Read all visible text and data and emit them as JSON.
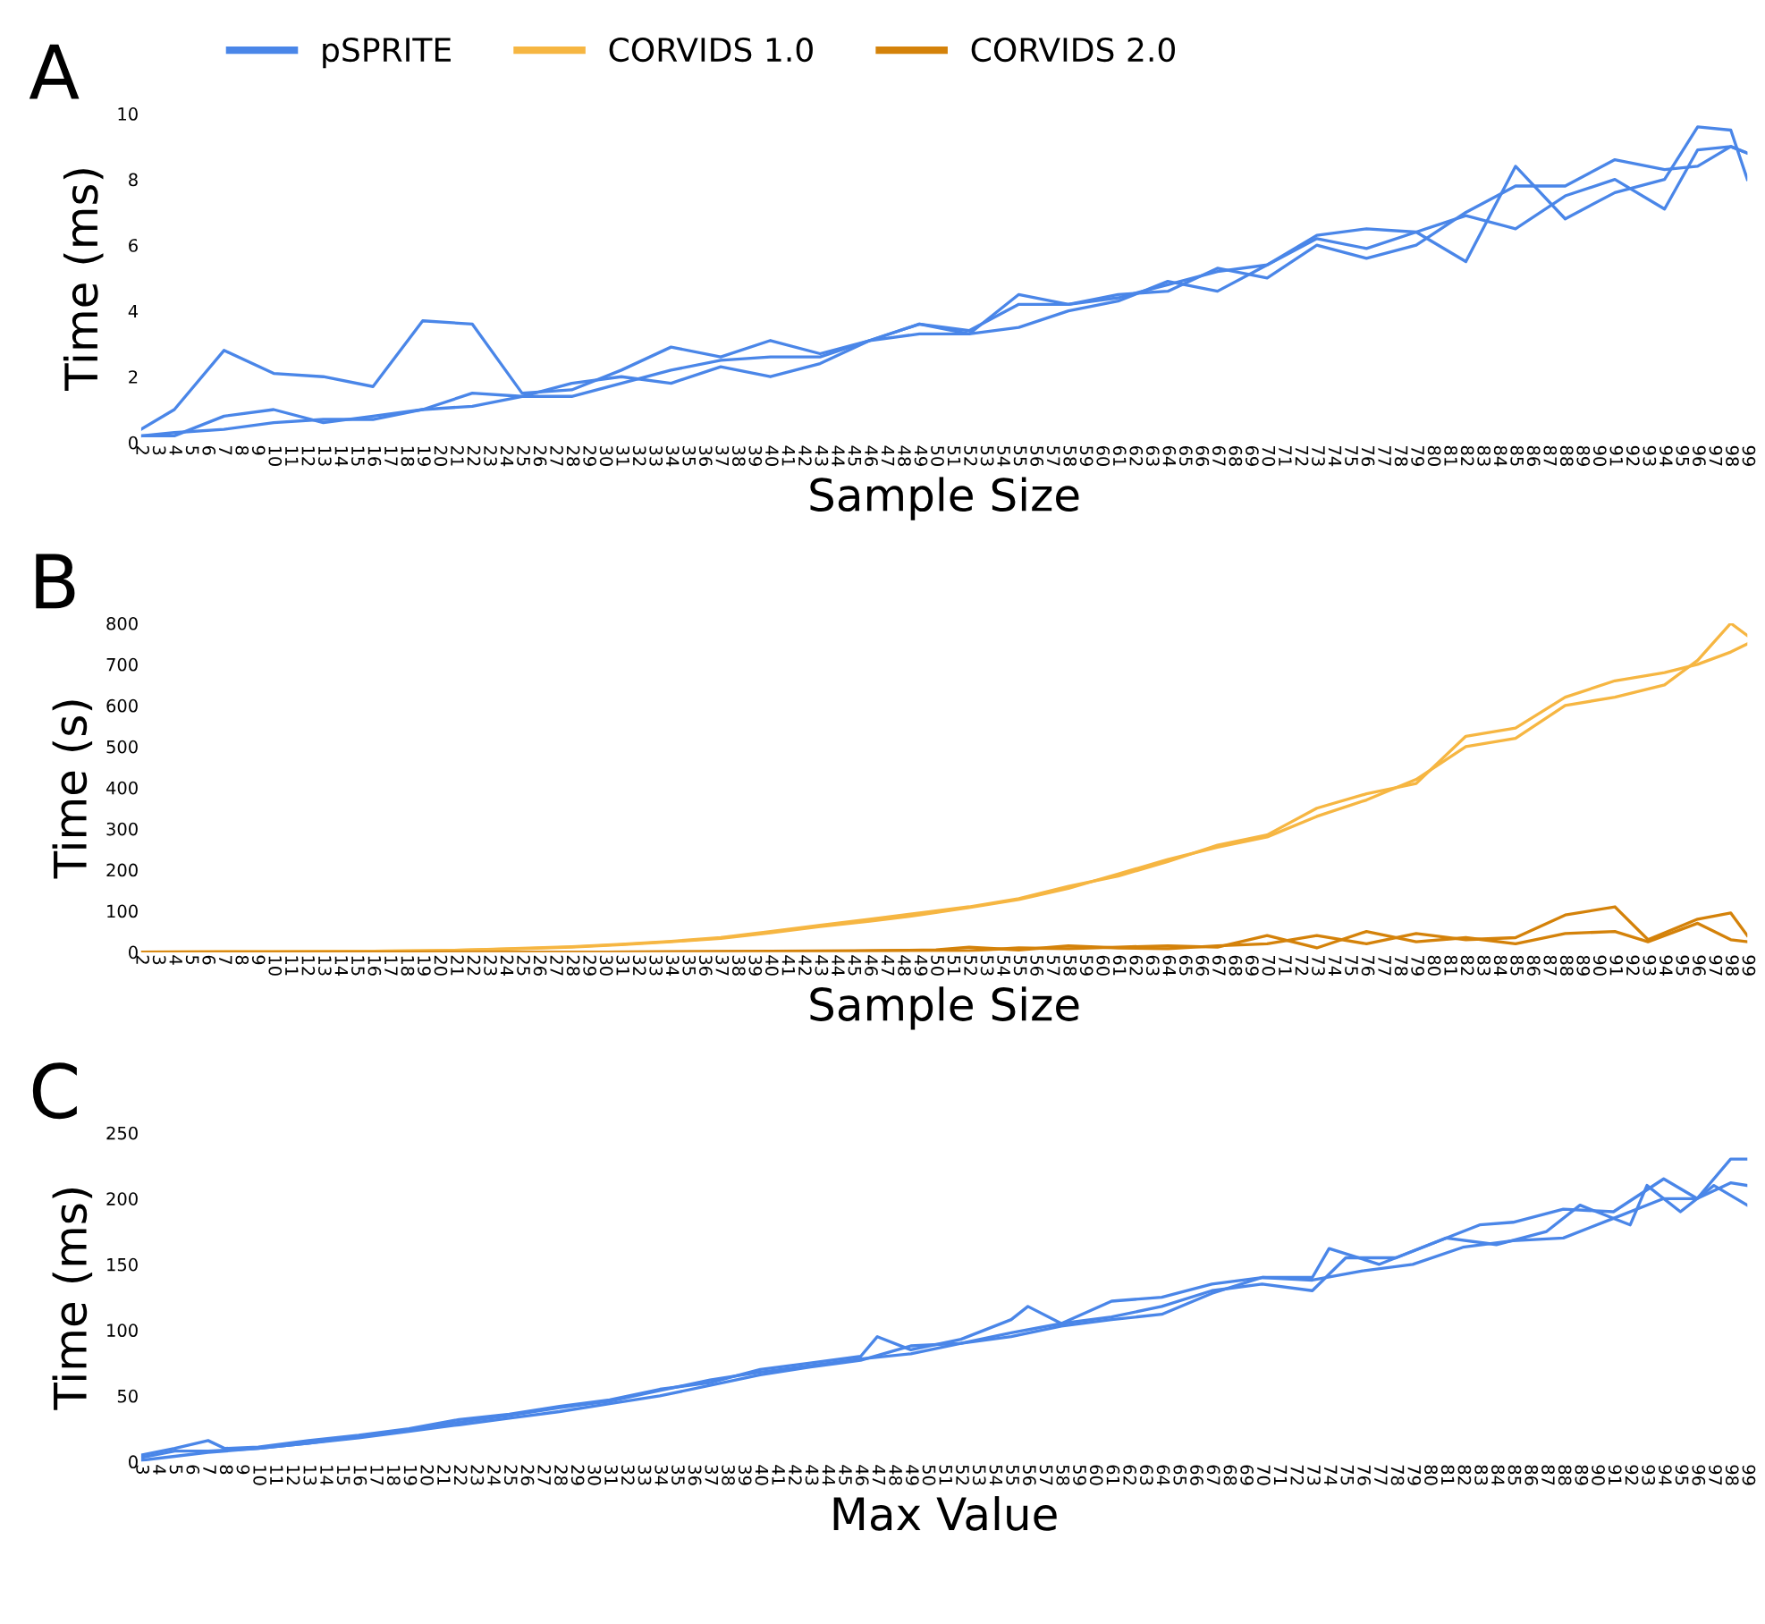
{
  "chart_data": [
    {
      "type": "line",
      "title": "A",
      "xlabel": "Sample Size",
      "ylabel": "Time (ms)",
      "legend": "top",
      "grid": false,
      "marker": "none",
      "line_style": "solid",
      "xlim": [
        2,
        99
      ],
      "ylim": [
        0,
        10
      ],
      "yticks": [
        0,
        2,
        4,
        6,
        8,
        10
      ],
      "xticks": [
        2,
        3,
        4,
        5,
        6,
        7,
        8,
        9,
        10,
        11,
        12,
        13,
        14,
        15,
        16,
        17,
        18,
        19,
        20,
        21,
        22,
        23,
        24,
        25,
        26,
        27,
        28,
        29,
        30,
        31,
        32,
        33,
        34,
        35,
        36,
        37,
        38,
        39,
        40,
        41,
        42,
        43,
        44,
        45,
        46,
        47,
        48,
        49,
        50,
        51,
        52,
        53,
        54,
        55,
        56,
        57,
        58,
        59,
        60,
        61,
        62,
        63,
        64,
        65,
        66,
        67,
        68,
        69,
        70,
        71,
        72,
        73,
        74,
        75,
        76,
        77,
        78,
        79,
        80,
        81,
        82,
        83,
        84,
        85,
        86,
        87,
        88,
        89,
        90,
        91,
        92,
        93,
        94,
        95,
        96,
        97,
        98,
        99
      ],
      "series": [
        {
          "name": "pSPRITE",
          "color": "#4a86e8",
          "x": [
            2,
            4,
            7,
            10,
            13,
            16,
            19,
            22,
            25,
            28,
            31,
            34,
            37,
            40,
            43,
            46,
            49,
            52,
            55,
            58,
            61,
            64,
            67,
            70,
            73,
            76,
            79,
            82,
            85,
            88,
            91,
            94,
            96,
            98,
            99
          ],
          "values": [
            0.4,
            1.0,
            2.8,
            2.1,
            2.0,
            1.7,
            3.7,
            3.6,
            1.5,
            1.6,
            2.2,
            2.9,
            2.6,
            3.1,
            2.7,
            3.1,
            3.6,
            3.3,
            4.5,
            4.2,
            4.4,
            4.8,
            5.2,
            5.4,
            6.3,
            6.5,
            6.4,
            5.5,
            8.4,
            6.8,
            7.6,
            8.0,
            9.6,
            9.5,
            8.0
          ]
        },
        {
          "color": "#4a86e8",
          "x": [
            2,
            4,
            7,
            10,
            13,
            16,
            19,
            22,
            25,
            28,
            31,
            34,
            37,
            40,
            43,
            46,
            49,
            52,
            55,
            58,
            61,
            64,
            67,
            70,
            73,
            76,
            79,
            82,
            85,
            88,
            91,
            94,
            96,
            98,
            99
          ],
          "values": [
            0.2,
            0.2,
            0.8,
            1.0,
            0.6,
            0.8,
            1.0,
            1.1,
            1.4,
            1.8,
            2.0,
            1.8,
            2.3,
            2.0,
            2.4,
            3.1,
            3.3,
            3.3,
            3.5,
            4.0,
            4.3,
            4.9,
            4.6,
            5.4,
            6.2,
            5.9,
            6.4,
            6.9,
            6.5,
            7.5,
            8.0,
            7.1,
            8.9,
            9.0,
            8.8
          ]
        },
        {
          "color": "#4a86e8",
          "x": [
            2,
            4,
            7,
            10,
            13,
            16,
            19,
            22,
            25,
            28,
            31,
            34,
            37,
            40,
            43,
            46,
            49,
            52,
            55,
            58,
            61,
            64,
            67,
            70,
            73,
            76,
            79,
            82,
            85,
            88,
            91,
            94,
            96,
            98,
            99
          ],
          "values": [
            0.2,
            0.3,
            0.4,
            0.6,
            0.7,
            0.7,
            1.0,
            1.5,
            1.4,
            1.4,
            1.8,
            2.2,
            2.5,
            2.6,
            2.6,
            3.1,
            3.6,
            3.4,
            4.2,
            4.2,
            4.5,
            4.6,
            5.3,
            5.0,
            6.0,
            5.6,
            6.0,
            7.0,
            7.8,
            7.8,
            8.6,
            8.3,
            8.4,
            9.0,
            8.8
          ]
        }
      ]
    },
    {
      "type": "line",
      "title": "B",
      "xlabel": "Sample Size",
      "ylabel": "Time (s)",
      "legend": "top",
      "grid": false,
      "marker": "none",
      "line_style": "solid",
      "xlim": [
        2,
        99
      ],
      "ylim": [
        0,
        800
      ],
      "yticks": [
        0,
        100,
        200,
        300,
        400,
        500,
        600,
        700,
        800
      ],
      "xticks": [
        2,
        3,
        4,
        5,
        6,
        7,
        8,
        9,
        10,
        11,
        12,
        13,
        14,
        15,
        16,
        17,
        18,
        19,
        20,
        21,
        22,
        23,
        24,
        25,
        26,
        27,
        28,
        29,
        30,
        31,
        32,
        33,
        34,
        35,
        36,
        37,
        38,
        39,
        40,
        41,
        42,
        43,
        44,
        45,
        46,
        47,
        48,
        49,
        50,
        51,
        52,
        53,
        54,
        55,
        56,
        57,
        58,
        59,
        60,
        61,
        62,
        63,
        64,
        65,
        66,
        67,
        68,
        69,
        70,
        71,
        72,
        73,
        74,
        75,
        76,
        77,
        78,
        79,
        80,
        81,
        82,
        83,
        84,
        85,
        86,
        87,
        88,
        89,
        90,
        91,
        92,
        93,
        94,
        95,
        96,
        97,
        98,
        99
      ],
      "series": [
        {
          "name": "CORVIDS 1.0",
          "color": "#f6b642",
          "x": [
            2,
            10,
            16,
            19,
            22,
            25,
            28,
            31,
            34,
            37,
            40,
            43,
            46,
            49,
            52,
            55,
            58,
            61,
            64,
            67,
            70,
            73,
            76,
            79,
            82,
            85,
            88,
            91,
            94,
            96,
            98,
            99
          ],
          "values": [
            0,
            1,
            2,
            3,
            5,
            8,
            12,
            18,
            25,
            33,
            47,
            62,
            75,
            90,
            108,
            128,
            155,
            190,
            225,
            255,
            280,
            330,
            370,
            420,
            500,
            520,
            600,
            620,
            650,
            710,
            800,
            770
          ]
        },
        {
          "color": "#f6b642",
          "x": [
            2,
            10,
            16,
            19,
            22,
            25,
            28,
            31,
            34,
            37,
            40,
            43,
            46,
            49,
            52,
            55,
            58,
            61,
            64,
            67,
            70,
            73,
            76,
            79,
            82,
            85,
            88,
            91,
            94,
            96,
            98,
            99
          ],
          "values": [
            0,
            1,
            2,
            3,
            5,
            9,
            13,
            19,
            26,
            35,
            50,
            65,
            80,
            95,
            110,
            130,
            160,
            185,
            220,
            260,
            285,
            350,
            385,
            410,
            525,
            545,
            620,
            660,
            680,
            700,
            730,
            750
          ]
        },
        {
          "name": "CORVIDS 2.0",
          "color": "#d4820a",
          "x": [
            2,
            10,
            20,
            30,
            40,
            45,
            50,
            52,
            55,
            58,
            61,
            64,
            67,
            70,
            73,
            76,
            79,
            82,
            85,
            88,
            91,
            93,
            96,
            98,
            99
          ],
          "values": [
            0,
            0,
            0,
            0,
            2,
            3,
            5,
            12,
            5,
            15,
            10,
            8,
            15,
            20,
            40,
            20,
            45,
            30,
            35,
            90,
            110,
            30,
            80,
            95,
            40
          ]
        },
        {
          "color": "#d4820a",
          "x": [
            2,
            10,
            20,
            30,
            40,
            45,
            50,
            52,
            55,
            58,
            61,
            64,
            67,
            70,
            73,
            76,
            79,
            82,
            85,
            88,
            91,
            93,
            96,
            98,
            99
          ],
          "values": [
            0,
            0,
            0,
            0,
            1,
            2,
            4,
            3,
            10,
            8,
            12,
            15,
            12,
            40,
            10,
            50,
            25,
            35,
            20,
            45,
            50,
            25,
            70,
            30,
            25
          ]
        }
      ]
    },
    {
      "type": "line",
      "title": "C",
      "xlabel": "Max Value",
      "ylabel": "Time (ms)",
      "grid": false,
      "marker": "none",
      "line_style": "solid",
      "xlim": [
        3,
        99
      ],
      "ylim": [
        0,
        250
      ],
      "yticks": [
        0,
        50,
        100,
        150,
        200,
        250
      ],
      "xticks": [
        3,
        4,
        5,
        6,
        7,
        8,
        9,
        10,
        11,
        12,
        13,
        14,
        15,
        16,
        17,
        18,
        19,
        20,
        21,
        22,
        23,
        24,
        25,
        26,
        27,
        28,
        29,
        30,
        31,
        32,
        33,
        34,
        35,
        36,
        37,
        38,
        39,
        40,
        41,
        42,
        43,
        44,
        45,
        46,
        47,
        48,
        49,
        50,
        51,
        52,
        53,
        54,
        55,
        56,
        57,
        58,
        59,
        60,
        61,
        62,
        63,
        64,
        65,
        66,
        67,
        68,
        69,
        70,
        71,
        72,
        73,
        74,
        75,
        76,
        77,
        78,
        79,
        80,
        81,
        82,
        83,
        84,
        85,
        86,
        87,
        88,
        89,
        90,
        91,
        92,
        93,
        94,
        95,
        96,
        97,
        98,
        99
      ],
      "series": [
        {
          "color": "#4a86e8",
          "x": [
            3,
            5,
            7,
            8,
            10,
            13,
            16,
            19,
            22,
            25,
            28,
            31,
            34,
            37,
            40,
            43,
            46,
            47,
            49,
            52,
            55,
            56,
            58,
            61,
            64,
            67,
            70,
            73,
            74,
            77,
            80,
            83,
            85,
            88,
            91,
            94,
            96,
            98,
            99
          ],
          "values": [
            5,
            10,
            16,
            10,
            11,
            16,
            20,
            25,
            32,
            36,
            42,
            47,
            55,
            60,
            70,
            75,
            80,
            95,
            85,
            93,
            108,
            118,
            105,
            122,
            125,
            135,
            140,
            140,
            162,
            150,
            165,
            180,
            182,
            192,
            190,
            215,
            200,
            230,
            230
          ]
        },
        {
          "color": "#4a86e8",
          "x": [
            3,
            5,
            7,
            10,
            13,
            16,
            19,
            22,
            25,
            28,
            31,
            34,
            37,
            40,
            43,
            46,
            49,
            52,
            55,
            58,
            61,
            64,
            67,
            70,
            73,
            75,
            78,
            81,
            84,
            87,
            89,
            92,
            93,
            95,
            97,
            99
          ],
          "values": [
            3,
            8,
            8,
            10,
            14,
            19,
            24,
            30,
            35,
            41,
            46,
            54,
            62,
            68,
            73,
            78,
            82,
            90,
            98,
            105,
            110,
            118,
            130,
            135,
            130,
            155,
            155,
            170,
            165,
            175,
            195,
            180,
            210,
            190,
            210,
            195
          ]
        },
        {
          "color": "#4a86e8",
          "x": [
            3,
            5,
            7,
            10,
            13,
            16,
            19,
            22,
            25,
            28,
            31,
            34,
            37,
            40,
            43,
            46,
            49,
            52,
            55,
            58,
            61,
            64,
            67,
            70,
            73,
            76,
            79,
            82,
            85,
            88,
            91,
            94,
            96,
            98,
            99
          ],
          "values": [
            1,
            4,
            7,
            10,
            14,
            18,
            23,
            28,
            33,
            38,
            44,
            50,
            58,
            66,
            72,
            77,
            88,
            90,
            95,
            103,
            108,
            112,
            128,
            140,
            138,
            145,
            150,
            163,
            168,
            170,
            185,
            200,
            200,
            212,
            210
          ]
        }
      ]
    }
  ]
}
